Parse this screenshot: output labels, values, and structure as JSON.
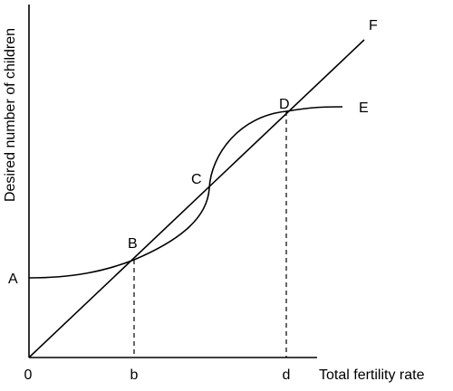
{
  "diagram": {
    "y_axis_label": "Desired number of children",
    "x_axis_label": "Total fertility rate",
    "origin_label": "0",
    "tick_labels": {
      "b": "b",
      "d": "d"
    },
    "curve_labels": {
      "a": "A",
      "e": "E",
      "f": "F"
    },
    "point_labels": {
      "b": "B",
      "c": "C",
      "d": "D"
    }
  }
}
